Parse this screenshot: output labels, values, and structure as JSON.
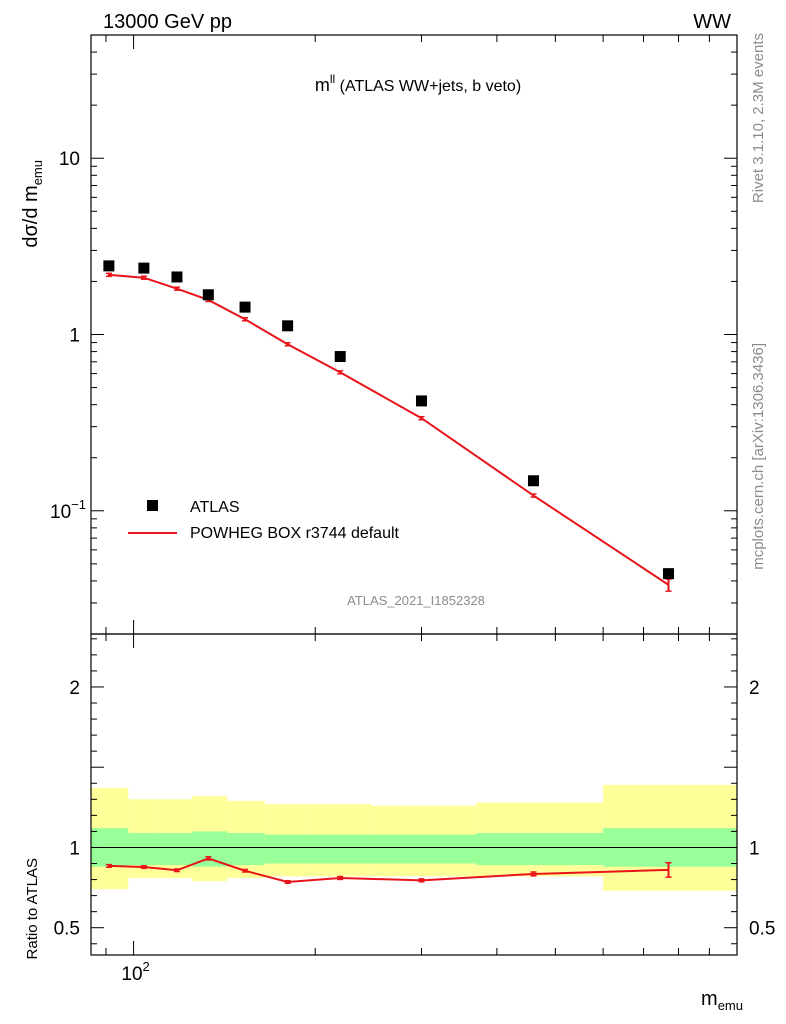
{
  "header": {
    "left_title": "13000 GeV pp",
    "right_title": "WW"
  },
  "side_labels": {
    "rivet": "Rivet 3.1.10,  2.3M events",
    "mcplots": "mcplots.cern.ch [arXiv:1306.3436]"
  },
  "analysis_tag": "ATLAS_2021_I1852328",
  "main_title": {
    "base": "m",
    "sup": "ll",
    "rest": " (ATLAS WW+jets, b veto)"
  },
  "ylabel": {
    "base": "dσ/d m",
    "sub": "emu"
  },
  "xlabel": {
    "base": "m",
    "sub": "emu"
  },
  "ratio_ylabel": "Ratio to ATLAS",
  "legend": {
    "data_label": "ATLAS",
    "mc_label": "POWHEG BOX r3744 default"
  },
  "colors": {
    "data": "#000000",
    "mc": "#e8141a",
    "band_inner": "#99ff99",
    "band_outer": "#ffff99"
  },
  "chart_data": [
    {
      "type": "scatter",
      "x_scale": "log",
      "y_scale": "log",
      "xlim": [
        85,
        1000
      ],
      "ylim": [
        0.02,
        50
      ],
      "y_ticks": [
        {
          "value": 10,
          "label": "10"
        },
        {
          "value": 1,
          "label": "1"
        },
        {
          "value": 0.1,
          "label": "10",
          "sup": "−1"
        }
      ],
      "series": [
        {
          "name": "ATLAS",
          "style": "markers",
          "x": [
            91,
            104,
            118,
            133,
            153,
            180,
            220,
            300,
            460,
            770
          ],
          "y": [
            2.45,
            2.38,
            2.12,
            1.68,
            1.43,
            1.12,
            0.75,
            0.42,
            0.148,
            0.044
          ]
        },
        {
          "name": "POWHEG BOX r3744 default",
          "style": "line",
          "x": [
            91,
            104,
            118,
            133,
            153,
            180,
            220,
            300,
            460,
            770
          ],
          "y": [
            2.18,
            2.1,
            1.82,
            1.57,
            1.22,
            0.88,
            0.61,
            0.335,
            0.122,
            0.038
          ],
          "yerr": [
            0,
            0,
            0,
            0,
            0,
            0,
            0,
            0,
            0,
            0.003
          ]
        }
      ]
    },
    {
      "type": "line",
      "x_scale": "log",
      "xlim": [
        85,
        1000
      ],
      "ylim": [
        0.33,
        2.33
      ],
      "y_ticks": [
        {
          "value": 2,
          "label": "2"
        },
        {
          "value": 1,
          "label": "1"
        },
        {
          "value": 0.5,
          "label": "0.5"
        }
      ],
      "x_ticks": [
        {
          "value": 100,
          "label": "10",
          "sup": "2"
        }
      ],
      "bin_edges": [
        85,
        98,
        110,
        125,
        143,
        165,
        195,
        248,
        370,
        600,
        1000
      ],
      "band_inner": [
        [
          0.88,
          1.12
        ],
        [
          0.89,
          1.09
        ],
        [
          0.89,
          1.09
        ],
        [
          0.88,
          1.1
        ],
        [
          0.89,
          1.09
        ],
        [
          0.9,
          1.08
        ],
        [
          0.9,
          1.08
        ],
        [
          0.9,
          1.08
        ],
        [
          0.89,
          1.09
        ],
        [
          0.88,
          1.12
        ]
      ],
      "band_outer": [
        [
          0.74,
          1.37
        ],
        [
          0.81,
          1.3
        ],
        [
          0.81,
          1.3
        ],
        [
          0.79,
          1.32
        ],
        [
          0.81,
          1.29
        ],
        [
          0.82,
          1.27
        ],
        [
          0.82,
          1.27
        ],
        [
          0.82,
          1.26
        ],
        [
          0.82,
          1.28
        ],
        [
          0.73,
          1.39
        ]
      ],
      "series": [
        {
          "name": "POWHEG BOX r3744 default",
          "x": [
            91,
            104,
            118,
            133,
            153,
            180,
            220,
            300,
            460,
            770
          ],
          "y": [
            0.885,
            0.878,
            0.858,
            0.932,
            0.855,
            0.785,
            0.81,
            0.795,
            0.835,
            0.86
          ],
          "yerr": [
            0.008,
            0.008,
            0.008,
            0.01,
            0.008,
            0.008,
            0.009,
            0.009,
            0.012,
            0.045
          ]
        }
      ]
    }
  ]
}
